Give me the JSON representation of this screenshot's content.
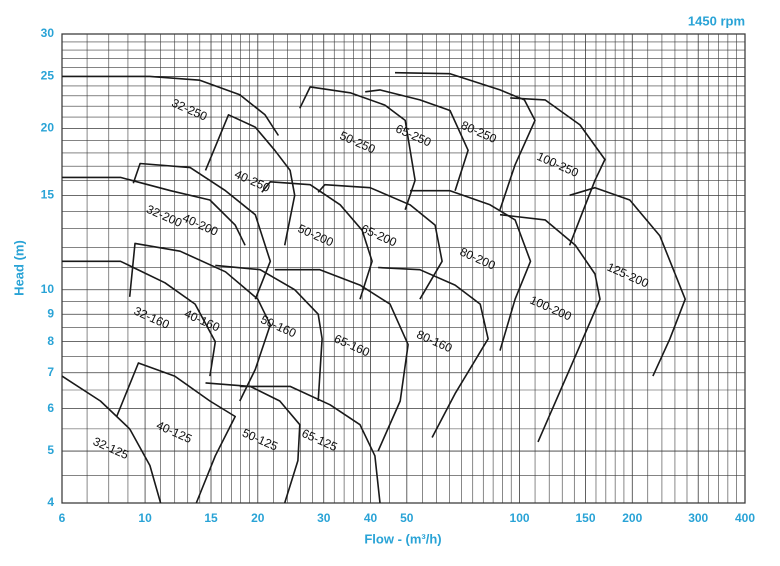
{
  "chart_data": {
    "type": "line",
    "title": "1450 rpm",
    "x_label": "Flow - (m³/h)",
    "y_label": "Head (m)",
    "log_x": true,
    "log_y": true,
    "grid": true,
    "color": "#1a1a1a",
    "grid_color": "#3a3a3a",
    "xlim": [
      6,
      400
    ],
    "ylim": [
      4,
      30
    ],
    "xticks": [
      6,
      10,
      15,
      20,
      30,
      40,
      50,
      100,
      150,
      200,
      300,
      400
    ],
    "yticks": [
      4,
      5,
      6,
      7,
      8,
      9,
      10,
      15,
      20,
      25,
      30
    ],
    "xgrid": [
      7,
      8,
      9,
      11,
      12,
      13,
      14,
      16,
      17,
      18,
      19,
      22,
      24,
      26,
      28,
      32,
      34,
      36,
      38,
      45,
      55,
      60,
      65,
      70,
      75,
      80,
      85,
      90,
      95,
      110,
      120,
      130,
      140,
      160,
      170,
      180,
      190,
      220,
      240,
      260,
      280,
      320,
      340,
      360,
      380
    ],
    "ygrid": [
      4.5,
      5.5,
      6.5,
      7.5,
      8.5,
      9.5,
      11,
      12,
      13,
      14,
      16,
      17,
      18,
      19,
      21,
      22,
      23,
      24,
      26,
      27,
      28,
      29
    ],
    "series": [
      {
        "name": "32-125",
        "x": [
          6,
          7.6,
          9.1,
          10.3,
          11.0
        ],
        "values": [
          6.9,
          6.2,
          5.5,
          4.7,
          4.0
        ]
      },
      {
        "name": "32-160",
        "x": [
          6,
          8.6,
          11.3,
          13.6,
          15.4,
          14.9
        ],
        "values": [
          11.3,
          11.3,
          10.3,
          9.4,
          8.0,
          6.9
        ]
      },
      {
        "name": "32-200",
        "x": [
          6,
          8.6,
          11.7,
          14.9,
          17.4,
          18.5
        ],
        "values": [
          16.2,
          16.2,
          15.3,
          14.7,
          13.2,
          12.1
        ]
      },
      {
        "name": "32-250",
        "x": [
          6,
          10.3,
          14.0,
          17.9,
          20.9,
          22.7
        ],
        "values": [
          25.0,
          25.0,
          24.6,
          23.1,
          21.2,
          19.4
        ]
      },
      {
        "name": "40-125",
        "x": [
          8.4,
          9.6,
          12.0,
          14.9,
          17.4,
          15.4,
          13.7
        ],
        "values": [
          5.8,
          7.3,
          6.9,
          6.2,
          5.8,
          4.9,
          4.0
        ]
      },
      {
        "name": "40-160",
        "x": [
          9.1,
          9.4,
          12.4,
          16.4,
          20.0,
          21.6,
          19.7,
          17.9
        ],
        "values": [
          9.7,
          12.2,
          11.8,
          10.8,
          9.6,
          8.6,
          7.1,
          6.2
        ]
      },
      {
        "name": "40-200",
        "x": [
          9.3,
          9.7,
          13.2,
          16.4,
          19.7,
          21.6,
          19.7
        ],
        "values": [
          15.8,
          17.2,
          16.9,
          15.3,
          13.8,
          11.3,
          9.6
        ]
      },
      {
        "name": "40-250",
        "x": [
          14.5,
          16.7,
          19.7,
          22.2,
          24.4,
          25.1,
          23.6
        ],
        "values": [
          16.7,
          21.2,
          20.1,
          18.2,
          16.7,
          15.0,
          12.1
        ]
      },
      {
        "name": "50-125",
        "x": [
          14.5,
          19.1,
          22.9,
          25.9,
          25.6,
          23.6
        ],
        "values": [
          6.7,
          6.6,
          6.2,
          5.6,
          4.8,
          4.0
        ]
      },
      {
        "name": "50-160",
        "x": [
          15.4,
          20.3,
          25.1,
          29.0,
          29.7,
          29.0
        ],
        "values": [
          11.1,
          10.9,
          10.0,
          9.0,
          8.1,
          6.2
        ]
      },
      {
        "name": "50-200",
        "x": [
          20.5,
          21.6,
          27.6,
          33.2,
          38.0,
          40.4,
          37.5
        ],
        "values": [
          15.2,
          15.9,
          15.7,
          14.4,
          12.9,
          11.3,
          9.6
        ]
      },
      {
        "name": "50-250",
        "x": [
          25.9,
          27.6,
          35.3,
          43.7,
          49.5,
          52.6,
          49.5
        ],
        "values": [
          21.8,
          23.9,
          23.3,
          22.1,
          20.7,
          16.0,
          14.1
        ]
      },
      {
        "name": "65-125",
        "x": [
          17.9,
          24.4,
          31.2,
          37.5,
          41.1,
          42.4
        ],
        "values": [
          6.6,
          6.6,
          6.1,
          5.6,
          4.9,
          4.0
        ]
      },
      {
        "name": "65-160",
        "x": [
          22.2,
          29.3,
          37.5,
          45.1,
          50.4,
          48.0,
          41.9
        ],
        "values": [
          10.9,
          10.9,
          10.2,
          9.4,
          7.9,
          6.2,
          5.0
        ]
      },
      {
        "name": "65-200",
        "x": [
          29.0,
          30.2,
          39.9,
          51.0,
          59.5,
          62.1,
          54.2
        ],
        "values": [
          15.2,
          15.7,
          15.5,
          14.4,
          13.2,
          11.3,
          9.6
        ]
      },
      {
        "name": "65-250",
        "x": [
          38.7,
          42.4,
          54.2,
          65.2,
          72.9,
          67.3
        ],
        "values": [
          23.4,
          23.6,
          22.6,
          21.6,
          18.2,
          15.3
        ]
      },
      {
        "name": "80-160",
        "x": [
          41.9,
          54.2,
          67.3,
          78.5,
          82.4,
          67.3,
          58.4
        ],
        "values": [
          11.0,
          10.9,
          10.2,
          9.4,
          8.1,
          6.4,
          5.3
        ]
      },
      {
        "name": "80-200",
        "x": [
          51.0,
          65.2,
          83.4,
          97.3,
          107,
          97.3,
          88.7
        ],
        "values": [
          15.3,
          15.3,
          14.4,
          13.5,
          11.3,
          9.6,
          7.7
        ]
      },
      {
        "name": "80-250",
        "x": [
          46.5,
          65.2,
          88.7,
          103,
          110,
          97.3,
          88.7
        ],
        "values": [
          25.4,
          25.3,
          23.6,
          22.6,
          20.7,
          17.1,
          14.1
        ]
      },
      {
        "name": "100-200",
        "x": [
          88.7,
          117,
          141,
          159,
          164,
          136,
          112
        ],
        "values": [
          13.8,
          13.5,
          12.1,
          10.7,
          9.6,
          7.1,
          5.2
        ]
      },
      {
        "name": "100-250",
        "x": [
          94.4,
          117,
          145,
          169,
          159,
          136
        ],
        "values": [
          22.8,
          22.6,
          20.3,
          17.5,
          16.0,
          12.1
        ]
      },
      {
        "name": "125-200",
        "x": [
          136,
          159,
          197,
          237,
          277,
          252,
          227
        ],
        "values": [
          15.0,
          15.5,
          14.7,
          12.6,
          9.6,
          8.1,
          6.9
        ]
      }
    ]
  }
}
